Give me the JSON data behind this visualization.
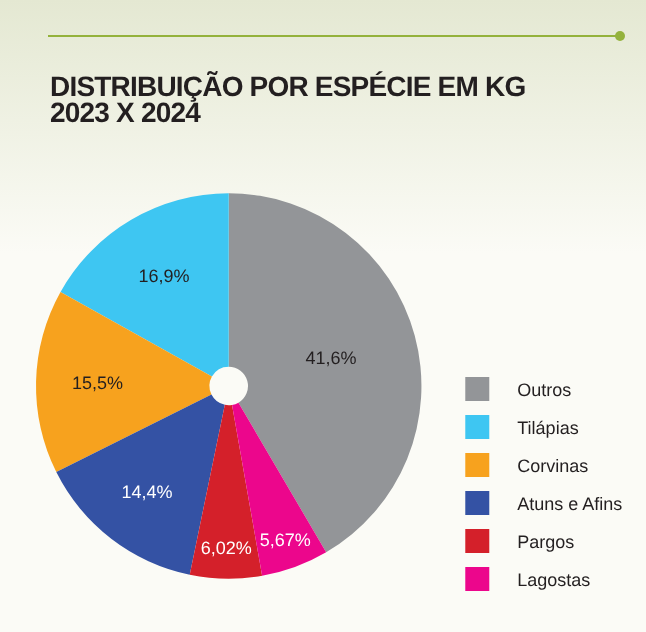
{
  "chart_data": {
    "type": "pie",
    "title": "DISTRIBUIÇÃO POR ESPÉCIE EM KG 2023 X 2024",
    "categories": [
      "Outros",
      "Tilápias",
      "Corvinas",
      "Atuns e Afins",
      "Pargos",
      "Lagostas"
    ],
    "values": [
      41.6,
      16.9,
      15.5,
      14.4,
      6.02,
      5.67
    ],
    "value_labels": [
      "41,6%",
      "16,9%",
      "15,5%",
      "14,4%",
      "6,02%",
      "5,67%"
    ],
    "colors": [
      "#939598",
      "#3ec6f2",
      "#f7a21e",
      "#3452a4",
      "#d4202a",
      "#ec068c"
    ],
    "legend": "bottom right"
  }
}
